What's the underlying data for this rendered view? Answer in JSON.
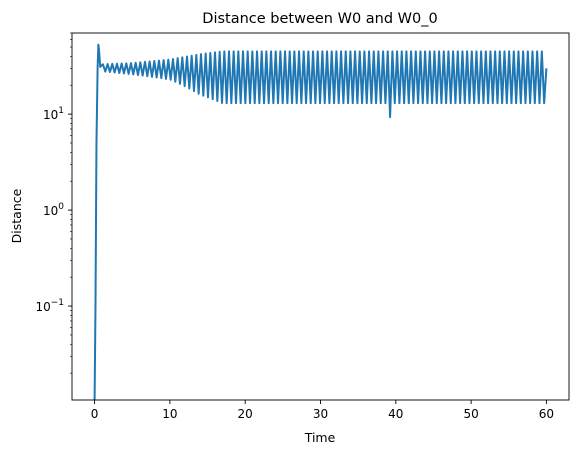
{
  "chart_data": {
    "type": "line",
    "title": "Distance between W0 and W0_0",
    "xlabel": "Time",
    "ylabel": "Distance",
    "xlim": [
      -3,
      63
    ],
    "ylim": [
      0.0105,
      70
    ],
    "yscale": "log",
    "grid": false,
    "xticks": [
      0,
      10,
      20,
      30,
      40,
      50,
      60
    ],
    "yticks": [
      {
        "value": 0.1,
        "base": "10",
        "exp": "−1"
      },
      {
        "value": 1,
        "base": "10",
        "exp": "0"
      },
      {
        "value": 10,
        "base": "10",
        "exp": "1"
      }
    ],
    "series": [
      {
        "color": "#1f77b4",
        "x": [
          0,
          0.12,
          0.25,
          0.4,
          0.5,
          0.6,
          0.75,
          0.9,
          1.0,
          1.2,
          1.5,
          2.0,
          2.5,
          3.0,
          4.0,
          5.0,
          6.0,
          8.0,
          10.0,
          12.0,
          13.0,
          14.0,
          15.0,
          16.0,
          17.0,
          18.0,
          20.0,
          22.0,
          25.0,
          26.0,
          28.0,
          30.0,
          32.0,
          35.0,
          36.0,
          38.0,
          39.0,
          39.5,
          40.0,
          42.0,
          45.0,
          48.0,
          50.0,
          52.0,
          55.0,
          56.0,
          58.0,
          59.0,
          59.5,
          60.0
        ],
        "y": [
          0.0105,
          0.1,
          5,
          30,
          53,
          45,
          31,
          30,
          30.5,
          30,
          30,
          30.5,
          30,
          30.5,
          30,
          30.5,
          30,
          30.5,
          30,
          30.5,
          30,
          30.5,
          30,
          30.5,
          30,
          30.5,
          30,
          30.5,
          30,
          30.5,
          30,
          30.5,
          30,
          30.5,
          30,
          30.5,
          30,
          30.5,
          30,
          30.5,
          30,
          30.5,
          30,
          30.5,
          30,
          30.5,
          30,
          30.5,
          30,
          30
        ],
        "oscillation": {
          "note": "approximate envelope of the rapid oscillation read from the picture",
          "period": 0.62,
          "envelope": [
            {
              "t": 0.8,
              "high": 33,
              "low": 28
            },
            {
              "t": 5,
              "high": 34,
              "low": 26
            },
            {
              "t": 10,
              "high": 37,
              "low": 23
            },
            {
              "t": 14,
              "high": 42,
              "low": 16
            },
            {
              "t": 17,
              "high": 45,
              "low": 13
            },
            {
              "t": 60,
              "high": 45,
              "low": 13
            }
          ],
          "dips": [
            {
              "t": 26.5,
              "low": 11
            },
            {
              "t": 39.3,
              "low": 9.3
            },
            {
              "t": 36.2,
              "low": 13
            }
          ],
          "end_value": 30
        }
      }
    ]
  }
}
